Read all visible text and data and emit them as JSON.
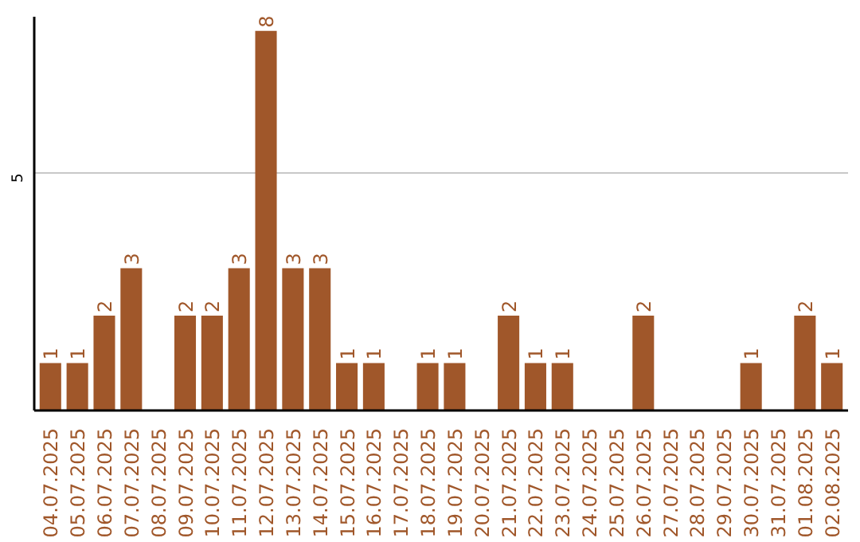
{
  "chart_data": {
    "type": "bar",
    "categories": [
      "04.07.2025",
      "05.07.2025",
      "06.07.2025",
      "07.07.2025",
      "08.07.2025",
      "09.07.2025",
      "10.07.2025",
      "11.07.2025",
      "12.07.2025",
      "13.07.2025",
      "14.07.2025",
      "15.07.2025",
      "16.07.2025",
      "17.07.2025",
      "18.07.2025",
      "19.07.2025",
      "20.07.2025",
      "21.07.2025",
      "22.07.2025",
      "23.07.2025",
      "24.07.2025",
      "25.07.2025",
      "26.07.2025",
      "27.07.2025",
      "28.07.2025",
      "29.07.2025",
      "30.07.2025",
      "31.07.2025",
      "01.08.2025",
      "02.08.2025"
    ],
    "values": [
      1,
      1,
      2,
      3,
      0,
      2,
      2,
      3,
      8,
      3,
      3,
      1,
      1,
      0,
      1,
      1,
      0,
      2,
      1,
      1,
      0,
      0,
      2,
      0,
      0,
      0,
      1,
      0,
      2,
      1
    ],
    "value_labels": [
      "1",
      "1",
      "2",
      "3",
      null,
      "2",
      "2",
      "3",
      "8",
      "3",
      "3",
      "1",
      "1",
      null,
      "1",
      "1",
      null,
      "2",
      "1",
      "1",
      null,
      null,
      "2",
      null,
      null,
      null,
      "1",
      null,
      "2",
      "1"
    ],
    "color": "#a0572a",
    "ylim": [
      0,
      8.3
    ],
    "yticks": [
      5
    ],
    "grid": "y"
  }
}
